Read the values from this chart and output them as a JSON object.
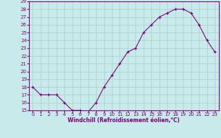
{
  "x": [
    0,
    1,
    2,
    3,
    4,
    5,
    6,
    7,
    8,
    9,
    10,
    11,
    12,
    13,
    14,
    15,
    16,
    17,
    18,
    19,
    20,
    21,
    22,
    23
  ],
  "y": [
    18,
    17,
    17,
    17,
    16,
    15,
    15,
    14.8,
    16,
    18,
    19.5,
    21,
    22.5,
    23,
    25,
    26,
    27,
    27.5,
    28,
    28,
    27.5,
    26,
    24,
    22.5
  ],
  "line_color": "#7b007b",
  "marker": "+",
  "marker_color": "#7b007b",
  "bg_color": "#c8eaea",
  "grid_color": "#a8cece",
  "xlabel": "Windchill (Refroidissement éolien,°C)",
  "ylim": [
    15,
    29
  ],
  "xlim": [
    -0.5,
    23.5
  ],
  "yticks": [
    15,
    16,
    17,
    18,
    19,
    20,
    21,
    22,
    23,
    24,
    25,
    26,
    27,
    28,
    29
  ],
  "xticks": [
    0,
    1,
    2,
    3,
    4,
    5,
    6,
    7,
    8,
    9,
    10,
    11,
    12,
    13,
    14,
    15,
    16,
    17,
    18,
    19,
    20,
    21,
    22,
    23
  ],
  "spine_color": "#7b007b",
  "tick_color": "#7b007b",
  "label_color": "#7b007b",
  "tick_fontsize": 5.0,
  "xlabel_fontsize": 5.5
}
